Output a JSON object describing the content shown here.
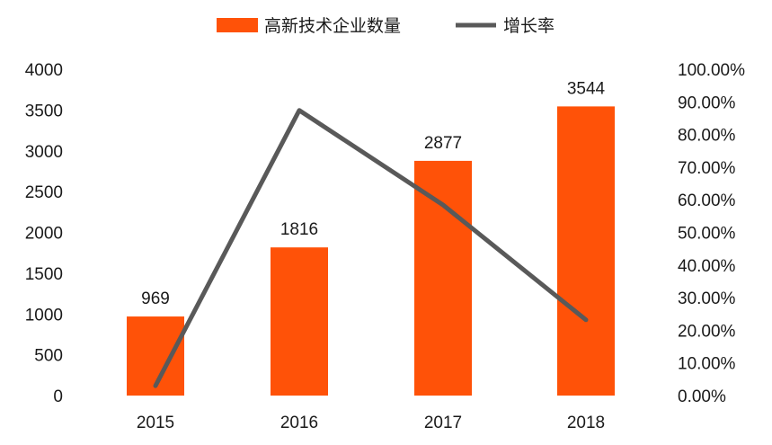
{
  "chart_data": {
    "type": "bar",
    "categories": [
      "2015",
      "2016",
      "2017",
      "2018"
    ],
    "series": [
      {
        "name": "高新技术企业数量",
        "kind": "bar",
        "axis": "left",
        "color": "#FF5208",
        "values": [
          969,
          1816,
          2877,
          3544
        ]
      },
      {
        "name": "增长率",
        "kind": "line",
        "axis": "right",
        "color": "#595959",
        "values": [
          0.03,
          0.874,
          0.584,
          0.232
        ]
      }
    ],
    "data_labels": [
      "969",
      "1816",
      "2877",
      "3544"
    ],
    "y_left": {
      "lim": [
        0,
        4000
      ],
      "ticks": [
        0,
        500,
        1000,
        1500,
        2000,
        2500,
        3000,
        3500,
        4000
      ],
      "tick_labels": [
        "0",
        "500",
        "1000",
        "1500",
        "2000",
        "2500",
        "3000",
        "3500",
        "4000"
      ]
    },
    "y_right": {
      "lim": [
        0,
        1
      ],
      "ticks": [
        0,
        0.1,
        0.2,
        0.3,
        0.4,
        0.5,
        0.6,
        0.7,
        0.8,
        0.9,
        1.0
      ],
      "tick_labels": [
        "0.00%",
        "10.00%",
        "20.00%",
        "30.00%",
        "40.00%",
        "50.00%",
        "60.00%",
        "70.00%",
        "80.00%",
        "90.00%",
        "100.00%"
      ]
    },
    "legend": {
      "placement": "top-center"
    },
    "grid": false,
    "title": "",
    "xlabel": "",
    "ylabel": ""
  }
}
